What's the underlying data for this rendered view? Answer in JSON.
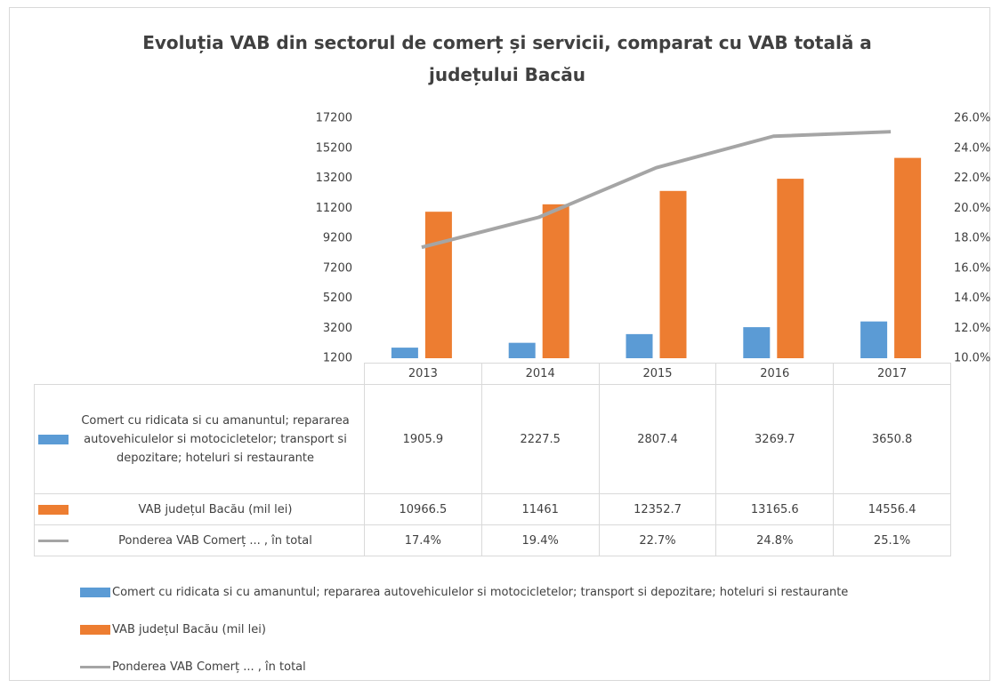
{
  "chart_data": {
    "type": "bar",
    "title": "Evoluția VAB din sectorul de comerț și servicii, comparat cu VAB totală a județului Bacău",
    "categories": [
      "2013",
      "2014",
      "2015",
      "2016",
      "2017"
    ],
    "series": [
      {
        "name": "Comert cu ridicata si cu amanuntul; repararea autovehiculelor si motocicletelor; transport si depozitare; hoteluri si restaurante",
        "color": "#5b9bd5",
        "type": "bar",
        "values": [
          1905.9,
          2227.5,
          2807.4,
          3269.7,
          3650.8
        ]
      },
      {
        "name": "VAB județul Bacău (mil lei)",
        "color": "#ed7d31",
        "type": "bar",
        "values": [
          10966.5,
          11461,
          12352.7,
          13165.6,
          14556.4
        ]
      },
      {
        "name": "Ponderea VAB Comerț ... , în total",
        "color": "#a5a5a5",
        "type": "line",
        "axis": "y2",
        "values": [
          17.4,
          19.4,
          22.7,
          24.8,
          25.1
        ],
        "value_labels": [
          "17.4%",
          "19.4%",
          "22.7%",
          "24.8%",
          "25.1%"
        ]
      }
    ],
    "ylim": [
      1200,
      17200
    ],
    "yticks": [
      1200,
      3200,
      5200,
      7200,
      9200,
      11200,
      13200,
      15200,
      17200
    ],
    "y2lim": [
      10,
      26
    ],
    "y2ticks": [
      {
        "value": 10,
        "label": "10.0%"
      },
      {
        "value": 12,
        "label": "12.0%"
      },
      {
        "value": 14,
        "label": "14.0%"
      },
      {
        "value": 16,
        "label": "16.0%"
      },
      {
        "value": 18,
        "label": "18.0%"
      },
      {
        "value": 20,
        "label": "20.0%"
      },
      {
        "value": 22,
        "label": "22.0%"
      },
      {
        "value": 24,
        "label": "24.0%"
      },
      {
        "value": 26,
        "label": "26.0%"
      }
    ],
    "data_table": true,
    "legend": "bottom"
  }
}
